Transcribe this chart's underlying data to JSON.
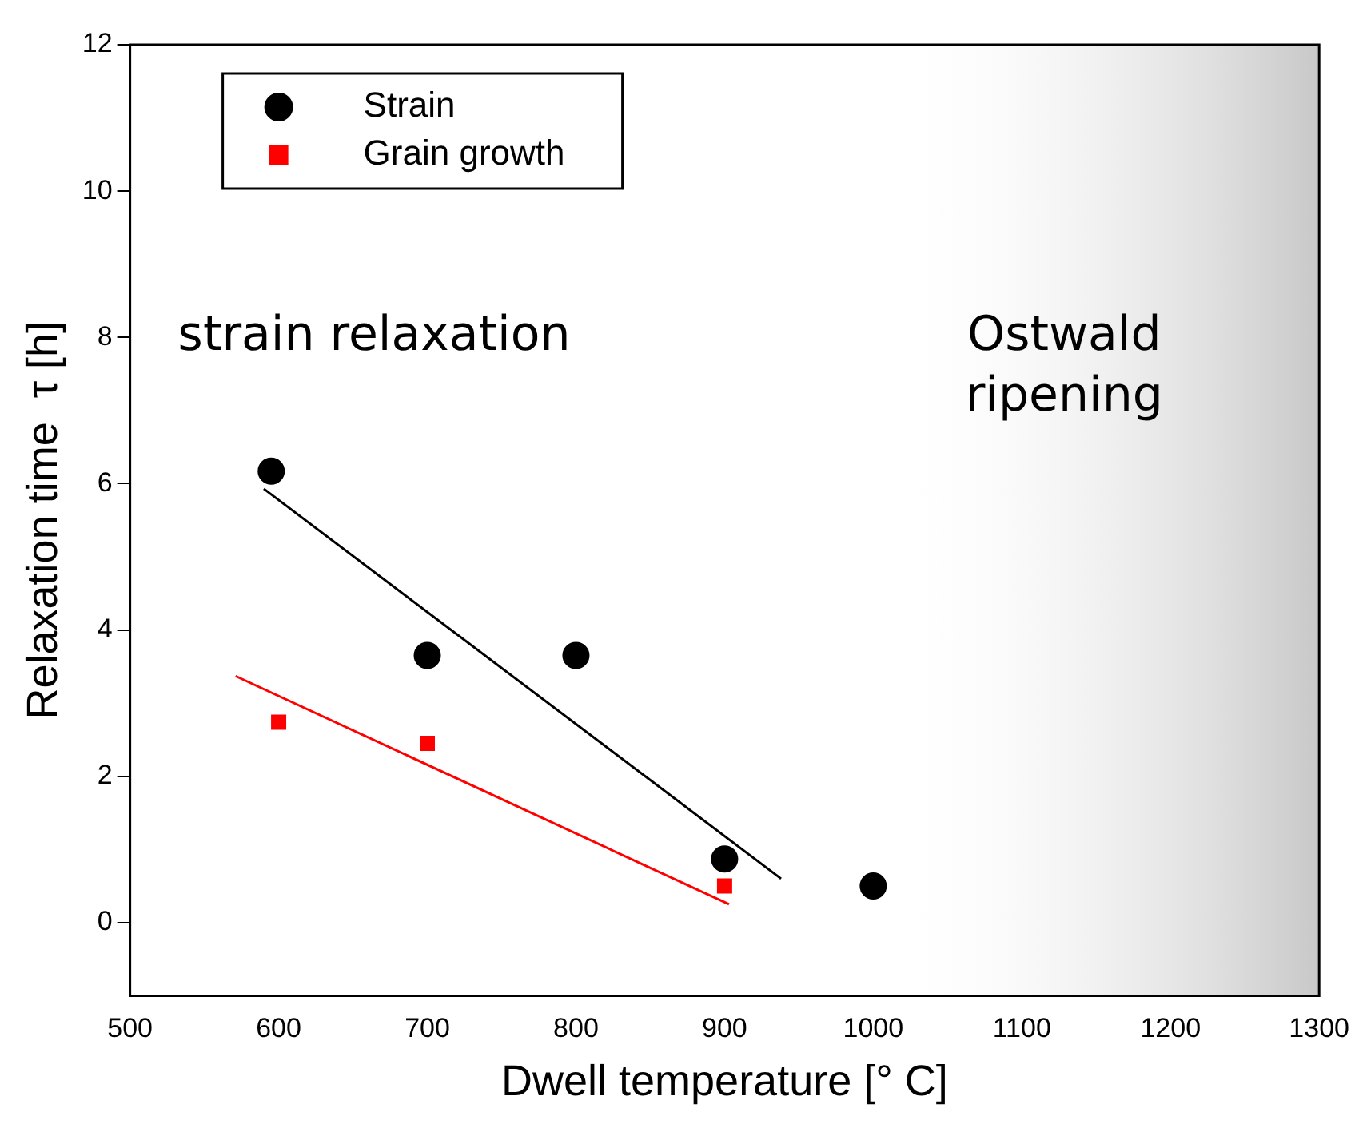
{
  "chart_data": {
    "type": "scatter",
    "xlabel": "Dwell temperature [° C]",
    "ylabel": "Relaxation time  τ [h]",
    "xlim": [
      500,
      1300
    ],
    "xticks": [
      500,
      600,
      700,
      800,
      900,
      1000,
      1100,
      1200,
      1300
    ],
    "ylim": [
      -1,
      12
    ],
    "yticks": [
      0,
      2,
      4,
      6,
      8,
      10,
      12
    ],
    "grid": false,
    "legend": "top left",
    "series": [
      {
        "name": "Strain",
        "color": "#000000",
        "marker": "circle",
        "x": [
          595,
          700,
          800,
          900,
          1000
        ],
        "values": [
          6.17,
          3.65,
          3.65,
          0.87,
          0.5
        ]
      },
      {
        "name": "Grain growth",
        "color": "#ff0000",
        "marker": "square",
        "x": [
          600,
          700,
          900
        ],
        "values": [
          2.74,
          2.45,
          0.5
        ]
      },
      {
        "type": "line",
        "color": "#000000",
        "marker": "none",
        "x": [
          590,
          938
        ],
        "values": [
          5.93,
          0.6
        ]
      },
      {
        "type": "line",
        "color": "#ff0000",
        "marker": "none",
        "x": [
          571,
          903
        ],
        "values": [
          3.37,
          0.25
        ]
      }
    ],
    "bands": [
      {
        "axis": "x",
        "from": 1000,
        "to": 1300,
        "label": "Ostwald ripening",
        "color": "#c8c8c8"
      }
    ],
    "annotations": [
      "strain relaxation"
    ]
  }
}
